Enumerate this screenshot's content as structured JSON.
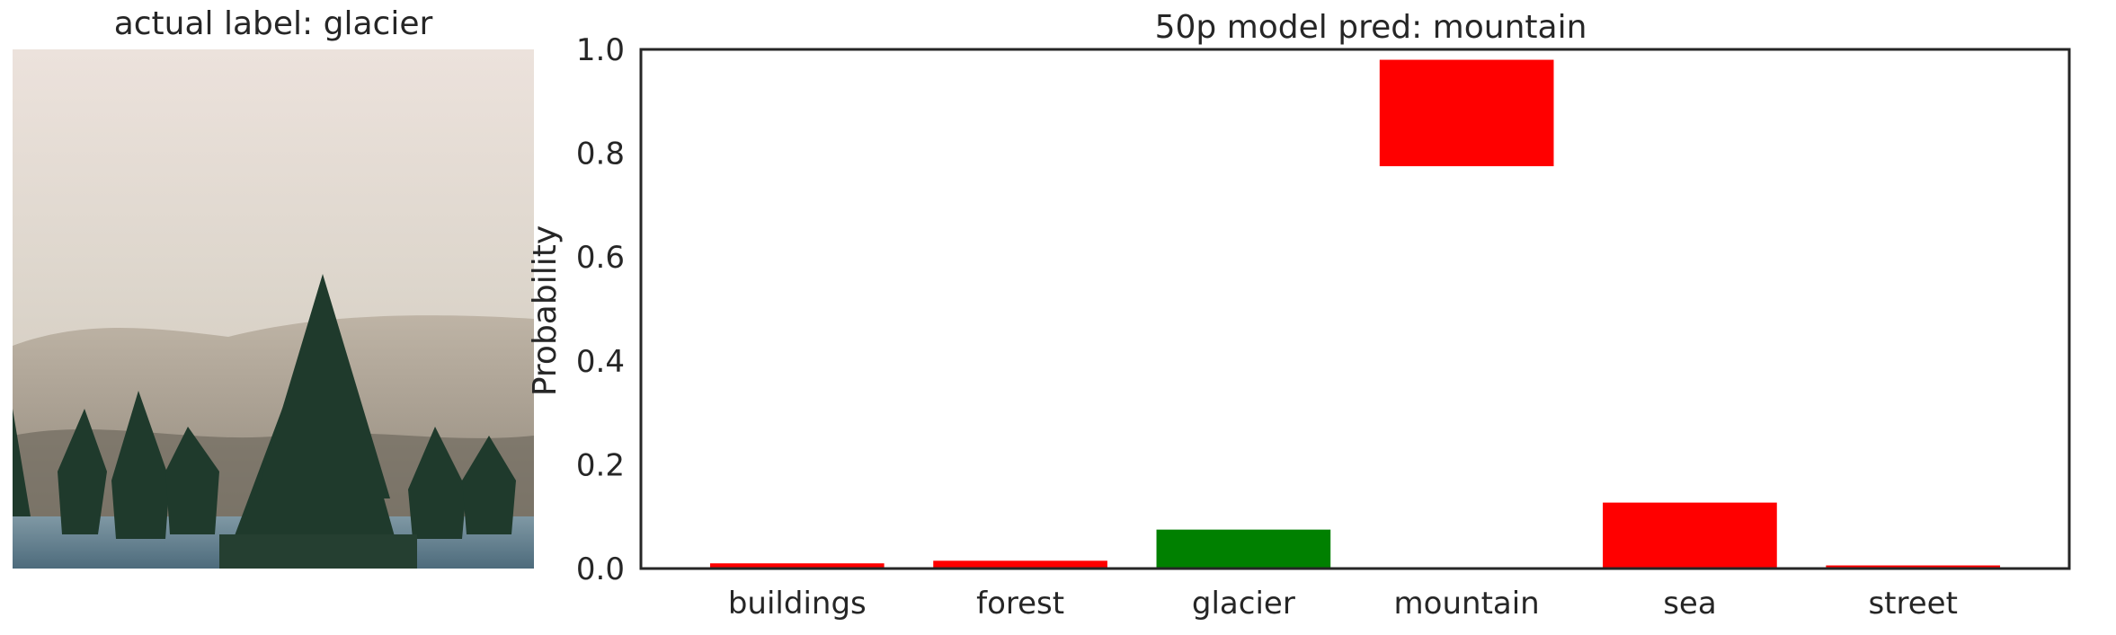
{
  "photo_panel": {
    "title": "actual label: glacier",
    "image_description": "misty mountain slope with dark evergreen trees and frosty ground"
  },
  "chart_data": {
    "type": "bar",
    "title": "50p model pred: mountain",
    "xlabel": "",
    "ylabel": "Probability",
    "categories": [
      "buildings",
      "forest",
      "glacier",
      "mountain",
      "sea",
      "street"
    ],
    "series": [
      {
        "values": [
          0.01,
          0.015,
          0.075,
          0.98,
          0.127,
          0.006
        ],
        "bar_bottoms": [
          0,
          0,
          0,
          0.775,
          0,
          0
        ],
        "colors": [
          "#ff0000",
          "#ff0000",
          "#008000",
          "#ff0000",
          "#ff0000",
          "#ff0000"
        ]
      }
    ],
    "ylim": [
      0,
      1.0
    ],
    "yticks": [
      "0.0",
      "0.2",
      "0.4",
      "0.6",
      "0.8",
      "1.0"
    ],
    "grid": false,
    "legend": "none"
  }
}
